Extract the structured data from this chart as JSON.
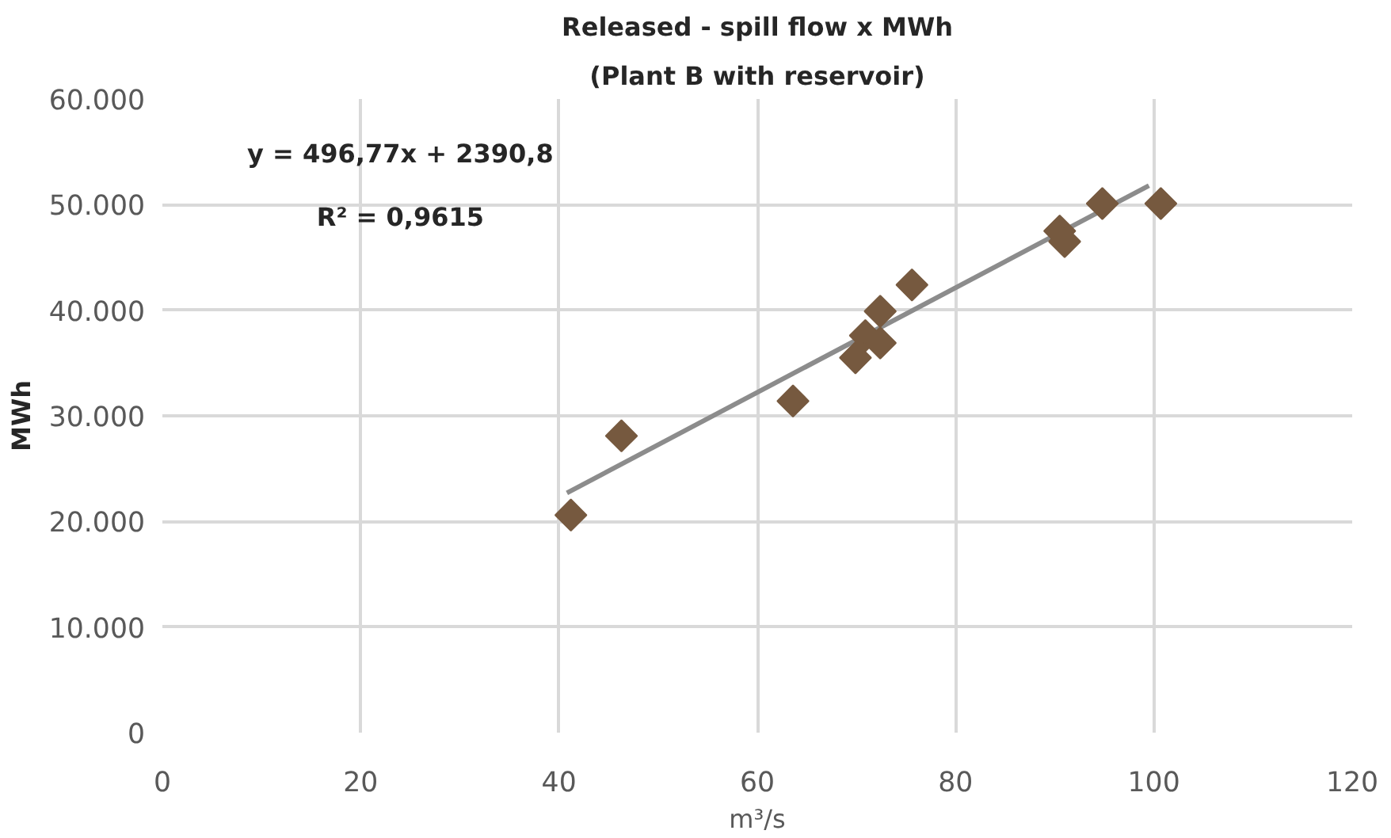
{
  "chart_data": {
    "type": "scatter",
    "title": "Released - spill flow x MWh",
    "subtitle": "(Plant B with reservoir)",
    "xlabel": "m³/s",
    "ylabel": "MWh",
    "xlim": [
      0,
      120
    ],
    "xticks": [
      0,
      20,
      40,
      60,
      80,
      100,
      120
    ],
    "ylim": [
      0,
      60000
    ],
    "yticks": [
      {
        "value": 0,
        "label": "0"
      },
      {
        "value": 10000,
        "label": "10.000"
      },
      {
        "value": 20000,
        "label": "20.000"
      },
      {
        "value": 30000,
        "label": "30.000"
      },
      {
        "value": 40000,
        "label": "40.000"
      },
      {
        "value": 50000,
        "label": "50.000"
      },
      {
        "value": 60000,
        "label": "60.000"
      }
    ],
    "grid": true,
    "marker": "diamond",
    "series": [
      {
        "type": "line",
        "marker": "none",
        "color": "#8c8c8c",
        "x": [
          40.8,
          99.5
        ],
        "values": [
          22700,
          51800
        ]
      },
      {
        "color": "#76593f",
        "x": [
          41.2,
          46.3,
          63.6,
          69.9,
          70.9,
          72.4,
          72.4,
          75.6,
          90.5,
          91.0,
          94.8,
          100.7
        ],
        "values": [
          20600,
          28100,
          31400,
          35500,
          37600,
          36900,
          39900,
          42400,
          47500,
          46500,
          50100,
          50100
        ]
      }
    ],
    "annotations": [
      "y = 496,77x + 2390,8",
      "R² = 0,9615"
    ]
  }
}
